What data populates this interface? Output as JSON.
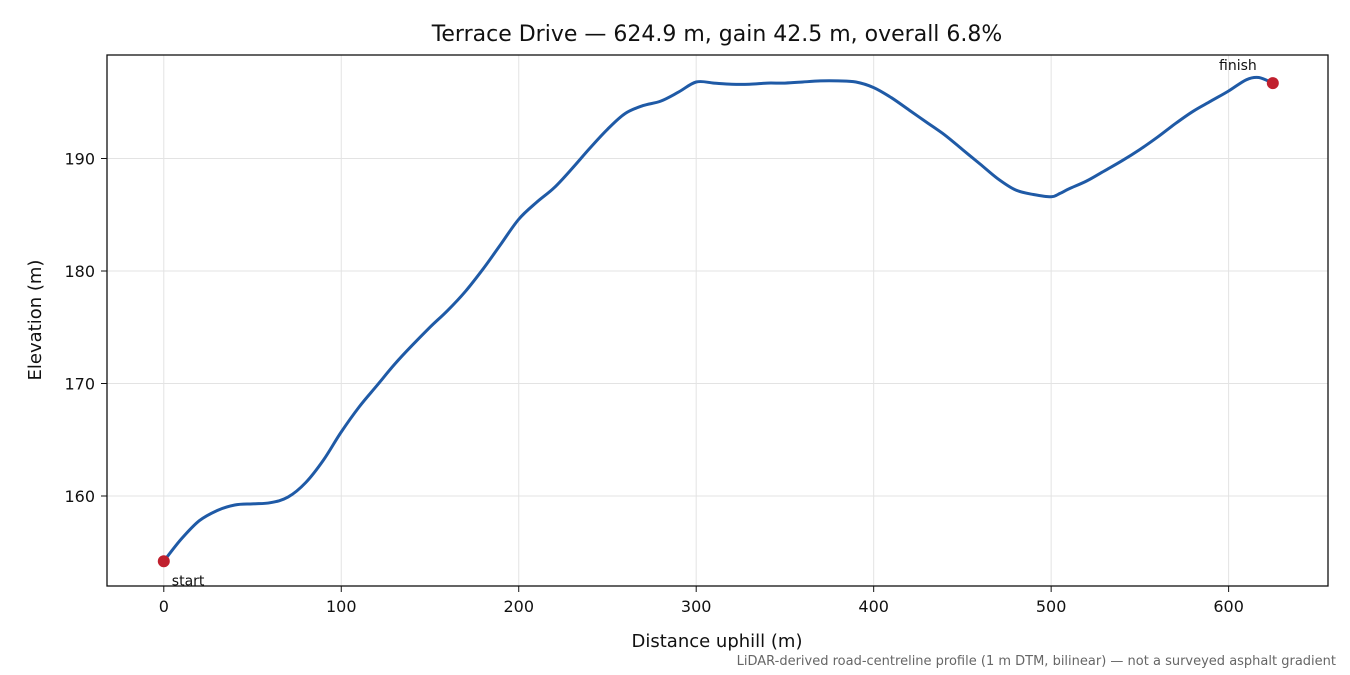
{
  "chart_data": {
    "type": "line",
    "title": "Terrace Drive — 624.9 m, gain 42.5 m, overall 6.8%",
    "xlabel": "Distance uphill (m)",
    "ylabel": "Elevation (m)",
    "xlim": [
      -32,
      656
    ],
    "ylim": [
      152,
      199.2
    ],
    "xticks": [
      0,
      100,
      200,
      300,
      400,
      500,
      600
    ],
    "yticks": [
      160,
      170,
      180,
      190
    ],
    "grid": true,
    "line_color": "#1f5aa6",
    "marker_color": "#c0202e",
    "series": [
      {
        "x": [
          0,
          10,
          20,
          30,
          40,
          50,
          60,
          70,
          80,
          90,
          100,
          110,
          120,
          130,
          140,
          150,
          160,
          170,
          180,
          190,
          200,
          210,
          220,
          230,
          240,
          250,
          260,
          270,
          280,
          290,
          300,
          310,
          320,
          330,
          340,
          350,
          360,
          370,
          380,
          390,
          400,
          410,
          420,
          430,
          440,
          450,
          460,
          470,
          480,
          490,
          500,
          505,
          510,
          520,
          530,
          540,
          550,
          560,
          570,
          580,
          590,
          600,
          610,
          617,
          624.9
        ],
        "y": [
          154.2,
          156.2,
          157.8,
          158.7,
          159.2,
          159.3,
          159.4,
          159.9,
          161.2,
          163.2,
          165.7,
          167.9,
          169.8,
          171.7,
          173.4,
          175.0,
          176.5,
          178.2,
          180.2,
          182.4,
          184.6,
          186.1,
          187.4,
          189.1,
          190.9,
          192.6,
          194.0,
          194.7,
          195.1,
          195.9,
          196.8,
          196.7,
          196.6,
          196.6,
          196.7,
          196.7,
          196.8,
          196.9,
          196.9,
          196.8,
          196.3,
          195.4,
          194.3,
          193.2,
          192.1,
          190.8,
          189.5,
          188.2,
          187.2,
          186.8,
          186.6,
          186.9,
          187.3,
          188.0,
          188.9,
          189.8,
          190.8,
          191.9,
          193.1,
          194.2,
          195.1,
          196.0,
          197.0,
          197.2,
          196.7
        ]
      }
    ],
    "annotations": [
      {
        "label": "start",
        "x": 0,
        "y": 154.2
      },
      {
        "label": "finish",
        "x": 624.9,
        "y": 196.7
      }
    ],
    "footnote": "LiDAR-derived road-centreline profile (1 m DTM, bilinear) — not a surveyed asphalt gradient"
  }
}
